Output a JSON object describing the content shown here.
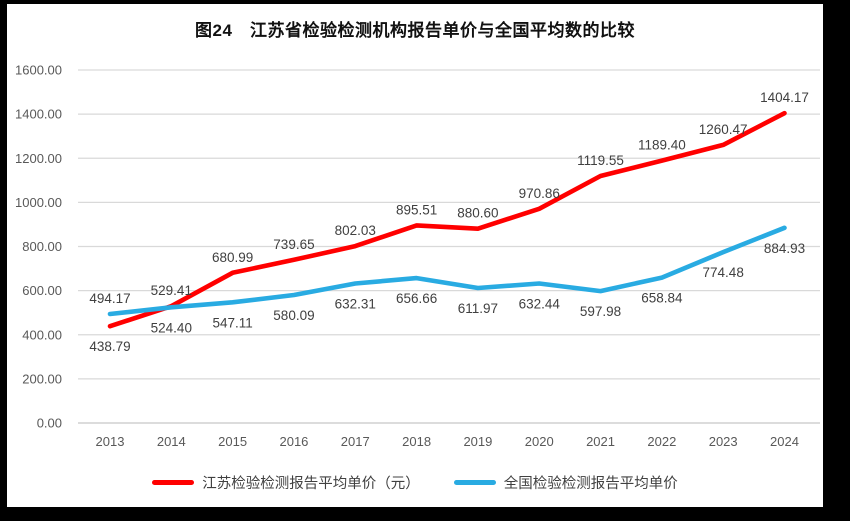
{
  "chart_data": {
    "type": "line",
    "title": "图24　江苏省检验检测机构报告单价与全国平均数的比较",
    "categories": [
      "2013",
      "2014",
      "2015",
      "2016",
      "2017",
      "2018",
      "2019",
      "2020",
      "2021",
      "2022",
      "2023",
      "2024"
    ],
    "series": [
      {
        "name": "江苏检验检测报告平均单价（元）",
        "color": "#ff0000",
        "values": [
          438.79,
          529.41,
          680.99,
          739.65,
          802.03,
          895.51,
          880.6,
          970.86,
          1119.55,
          1189.4,
          1260.47,
          1404.17
        ],
        "labels": [
          "438.79",
          "529.41",
          "680.99",
          "739.65",
          "802.03",
          "895.51",
          "880.60",
          "970.86",
          "1119.55",
          "1189.40",
          "1260.47",
          "1404.17"
        ],
        "label_side": "above",
        "first_label_side": "below"
      },
      {
        "name": "全国检验检测报告平均单价",
        "color": "#29abe2",
        "values": [
          494.17,
          524.4,
          547.11,
          580.09,
          632.31,
          656.66,
          611.97,
          632.44,
          597.98,
          658.84,
          774.48,
          884.93
        ],
        "labels": [
          "494.17",
          "524.40",
          "547.11",
          "580.09",
          "632.31",
          "656.66",
          "611.97",
          "632.44",
          "597.98",
          "658.84",
          "774.48",
          "884.93"
        ],
        "label_side": "below",
        "first_label_side": "above"
      }
    ],
    "ylim": [
      0,
      1600
    ],
    "ytick_step": 200,
    "ytick_labels": [
      "0.00",
      "200.00",
      "400.00",
      "600.00",
      "800.00",
      "1000.00",
      "1200.00",
      "1400.00",
      "1600.00"
    ],
    "grid": true,
    "legend_position": "bottom"
  },
  "colors": {
    "gridline": "#d9d9d9",
    "zero_axis": "#c6c6c6",
    "axis_text": "#595959",
    "data_label_text": "#404040",
    "background": "#ffffff",
    "frame": "#000000"
  }
}
